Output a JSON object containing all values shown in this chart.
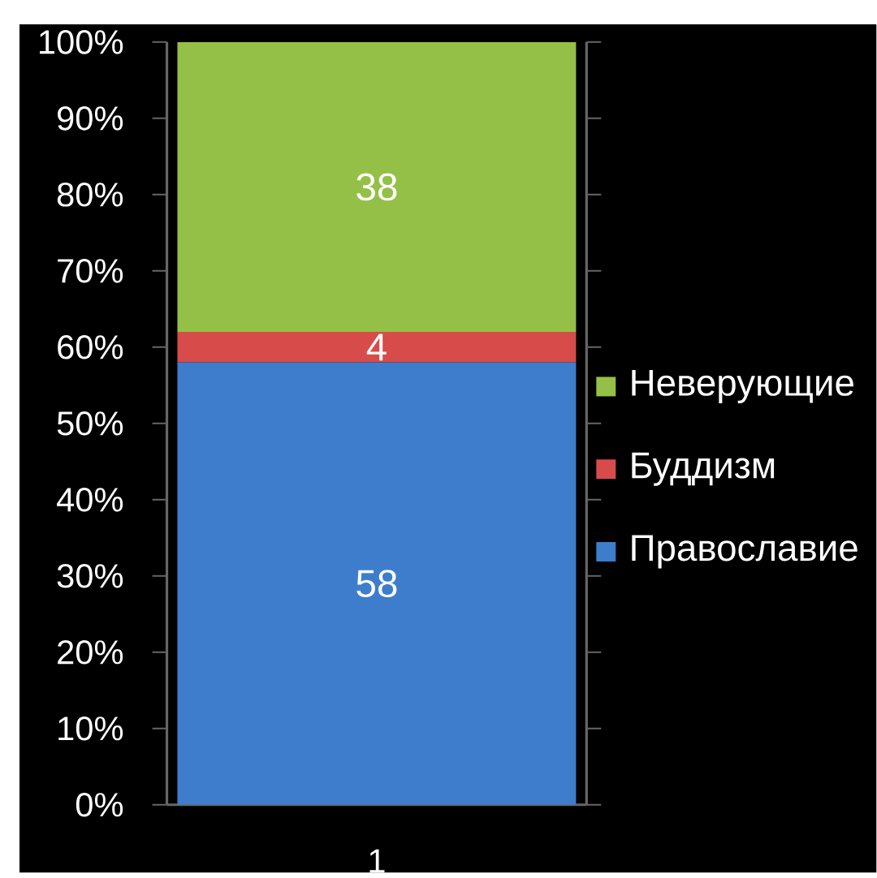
{
  "chart_data": {
    "type": "bar",
    "stacked": true,
    "categories": [
      "1"
    ],
    "series": [
      {
        "name": "Православие",
        "color": "#3e7dcc",
        "values": [
          58
        ]
      },
      {
        "name": "Буддизм",
        "color": "#d84b4b",
        "values": [
          4
        ]
      },
      {
        "name": "Неверующие",
        "color": "#94c047",
        "values": [
          38
        ]
      }
    ],
    "ylim": [
      0,
      100
    ],
    "yticks": [
      {
        "value": 0,
        "label": "0%"
      },
      {
        "value": 10,
        "label": "10%"
      },
      {
        "value": 20,
        "label": "20%"
      },
      {
        "value": 30,
        "label": "30%"
      },
      {
        "value": 40,
        "label": "40%"
      },
      {
        "value": 50,
        "label": "50%"
      },
      {
        "value": 60,
        "label": "60%"
      },
      {
        "value": 70,
        "label": "70%"
      },
      {
        "value": 80,
        "label": "80%"
      },
      {
        "value": 90,
        "label": "90%"
      },
      {
        "value": 100,
        "label": "100%"
      }
    ],
    "data_labels": true,
    "legend": "right"
  }
}
